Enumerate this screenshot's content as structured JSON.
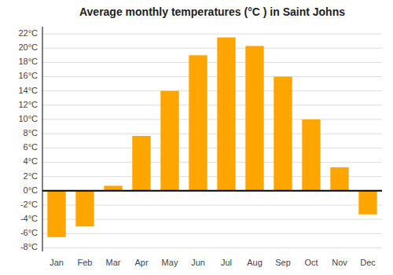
{
  "chart_data": {
    "type": "bar",
    "title": "Average monthly temperatures (°C ) in Saint Johns",
    "categories": [
      "Jan",
      "Feb",
      "Mar",
      "Apr",
      "May",
      "Jun",
      "Jul",
      "Aug",
      "Sep",
      "Oct",
      "Nov",
      "Dec"
    ],
    "values": [
      -6.5,
      -5.0,
      0.7,
      7.7,
      14.0,
      19.0,
      21.5,
      20.3,
      16.0,
      10.0,
      3.3,
      -3.3
    ],
    "color": "#FFA500",
    "ylim": [
      -8.5,
      23
    ],
    "yticks": [
      {
        "value": -8,
        "label": "-8°C"
      },
      {
        "value": -6,
        "label": "-6°C"
      },
      {
        "value": -4,
        "label": "-4°C"
      },
      {
        "value": -2,
        "label": "-2°C"
      },
      {
        "value": 0,
        "label": "0°C"
      },
      {
        "value": 2,
        "label": "2°C"
      },
      {
        "value": 4,
        "label": "4°C"
      },
      {
        "value": 6,
        "label": "6°C"
      },
      {
        "value": 8,
        "label": "8°C"
      },
      {
        "value": 10,
        "label": "10°C"
      },
      {
        "value": 12,
        "label": "12°C"
      },
      {
        "value": 14,
        "label": "14°C"
      },
      {
        "value": 16,
        "label": "16°C"
      },
      {
        "value": 18,
        "label": "18°C"
      },
      {
        "value": 20,
        "label": "20°C"
      },
      {
        "value": 22,
        "label": "22°C"
      }
    ],
    "grid": true
  }
}
